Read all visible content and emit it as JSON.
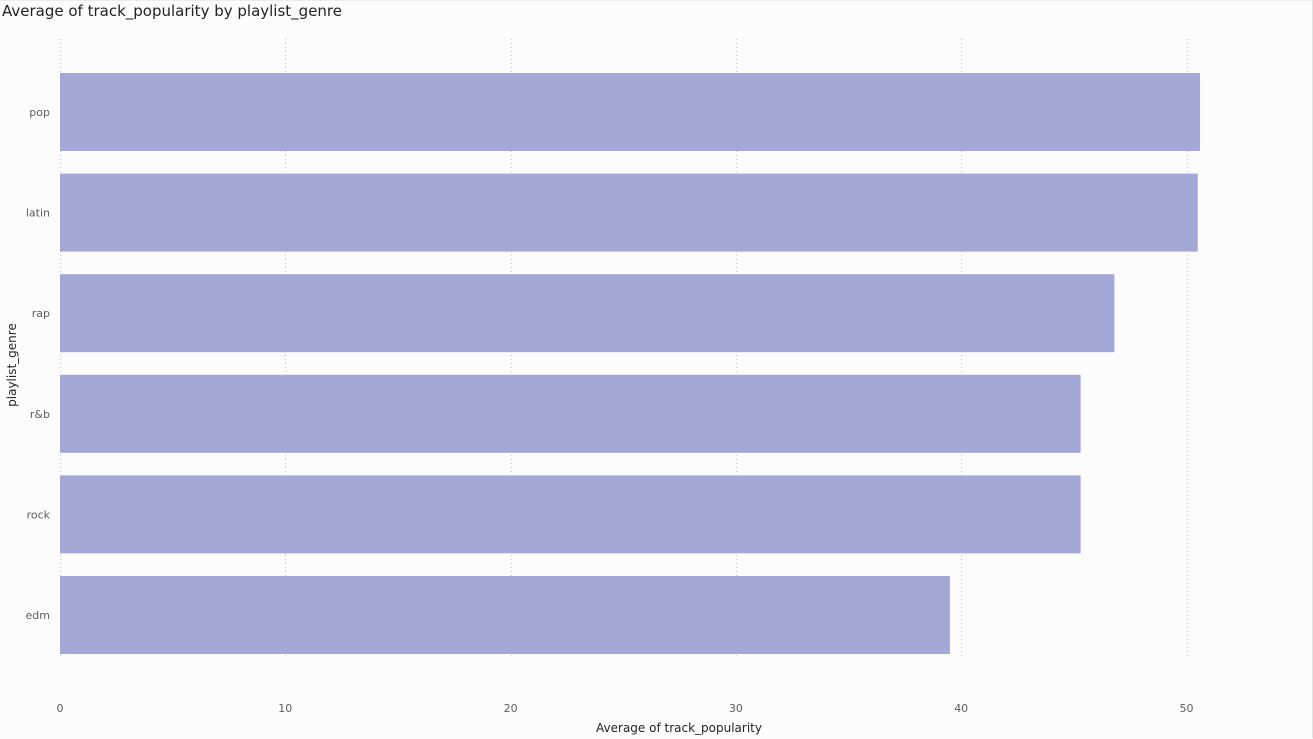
{
  "chart_data": {
    "type": "bar",
    "orientation": "horizontal",
    "title": "Average of track_popularity by playlist_genre",
    "xlabel": "Average of track_popularity",
    "ylabel": "playlist_genre",
    "categories": [
      "pop",
      "latin",
      "rap",
      "r&b",
      "rock",
      "edm"
    ],
    "values": [
      50.6,
      50.5,
      46.8,
      45.3,
      45.3,
      39.5
    ],
    "xlim": [
      0,
      55
    ],
    "xticks": [
      0,
      10,
      20,
      30,
      40,
      50
    ],
    "grid": "vertical",
    "legend": "none",
    "bar_color": "#A3A8D7"
  }
}
